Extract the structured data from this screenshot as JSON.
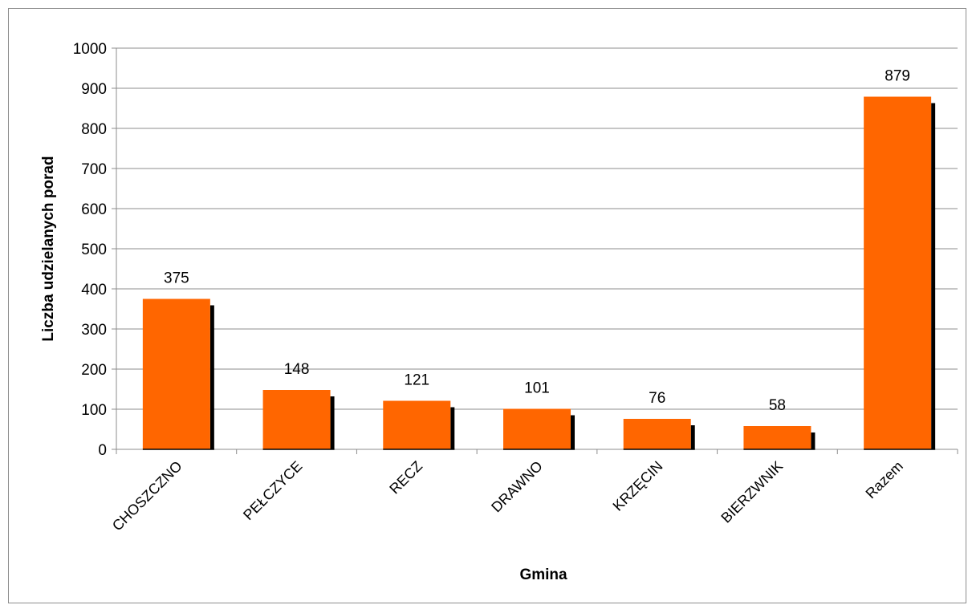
{
  "chart_data": {
    "type": "bar",
    "title": "",
    "xlabel": "Gmina",
    "ylabel": "Liczba udzielanych porad",
    "categories": [
      "CHOSZCZNO",
      "PEŁCZYCE",
      "RECZ",
      "DRAWNO",
      "KRZĘCIN",
      "BIERZWNIK",
      "Razem"
    ],
    "values": [
      375,
      148,
      121,
      101,
      76,
      58,
      879
    ],
    "value_labels": [
      "375",
      "148",
      "121",
      "101",
      "76",
      "58",
      "879"
    ],
    "ylim": [
      0,
      1000
    ],
    "yticks": [
      "0",
      "100",
      "200",
      "300",
      "400",
      "500",
      "600",
      "700",
      "800",
      "900",
      "1000"
    ],
    "grid": true,
    "legend": "none",
    "colors": {
      "bar": "#FF6600",
      "shadow": "#000000",
      "grid": "#8c8c8c"
    }
  }
}
